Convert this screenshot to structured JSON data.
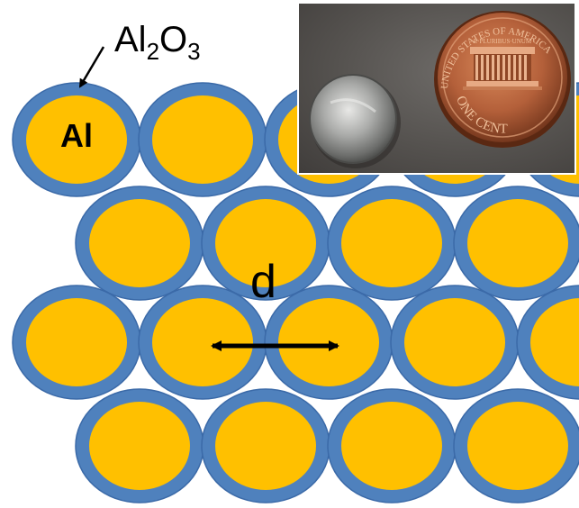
{
  "labels": {
    "oxide_prefix": "Al",
    "oxide_sub1": "2",
    "oxide_mid": "O",
    "oxide_sub2": "3",
    "core_label": "Al",
    "distance_label": "d"
  },
  "coin": {
    "top_text": "UNITED STATES OF AMERICA",
    "motto": "E·PLURIBUS·UNUM",
    "value_text": "ONE CENT"
  },
  "colors": {
    "shell": "#4f81bd",
    "shell_stroke": "#3b6aa8",
    "core": "#ffc000",
    "arrow": "#000000"
  },
  "particle_rows": 4,
  "particles_per_row": 5
}
